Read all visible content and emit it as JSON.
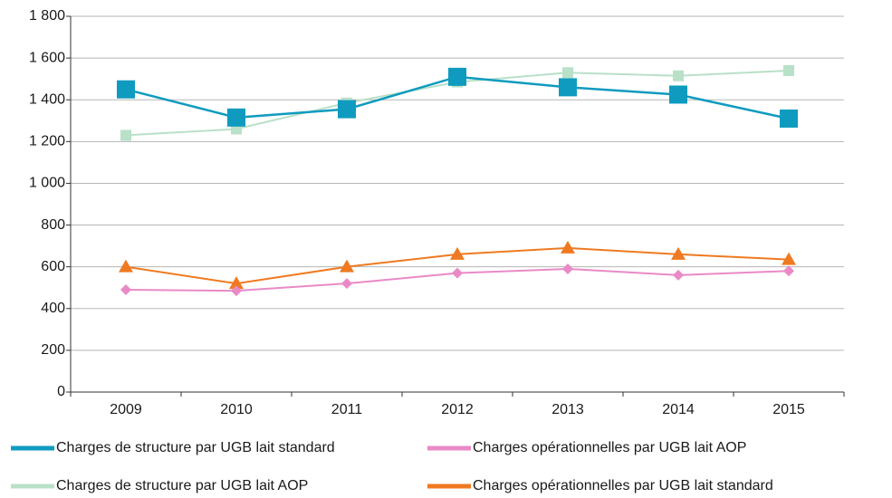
{
  "chart_data": {
    "type": "line",
    "categories": [
      "2009",
      "2010",
      "2011",
      "2012",
      "2013",
      "2014",
      "2015"
    ],
    "series": [
      {
        "name": "Charges de structure par UGB lait standard",
        "color": "#0f9bbf",
        "marker": "square",
        "values": [
          1450,
          1315,
          1355,
          1510,
          1460,
          1425,
          1310
        ]
      },
      {
        "name": "Charges opérationnelles par UGB lait AOP",
        "color": "#e98ac6",
        "marker": "diamond",
        "values": [
          490,
          485,
          520,
          570,
          590,
          560,
          580
        ]
      },
      {
        "name": "Charges de structure par UGB lait AOP",
        "color": "#b9e0c8",
        "marker": "square",
        "values": [
          1230,
          1260,
          1385,
          1485,
          1530,
          1515,
          1540
        ]
      },
      {
        "name": "Charges opérationnelles par UGB lait standard",
        "color": "#ef7a21",
        "marker": "triangle",
        "values": [
          600,
          520,
          600,
          660,
          690,
          660,
          635
        ]
      }
    ],
    "ylim": [
      0,
      1800
    ],
    "yticks": [
      0,
      200,
      400,
      600,
      800,
      {
        "value": 1000,
        "label": "1 000"
      },
      {
        "value": 1200,
        "label": "1 200"
      },
      {
        "value": 1400,
        "label": "1 400"
      },
      {
        "value": 1600,
        "label": "1 600"
      },
      {
        "value": 1800,
        "label": "1 800"
      }
    ],
    "grid": true
  }
}
